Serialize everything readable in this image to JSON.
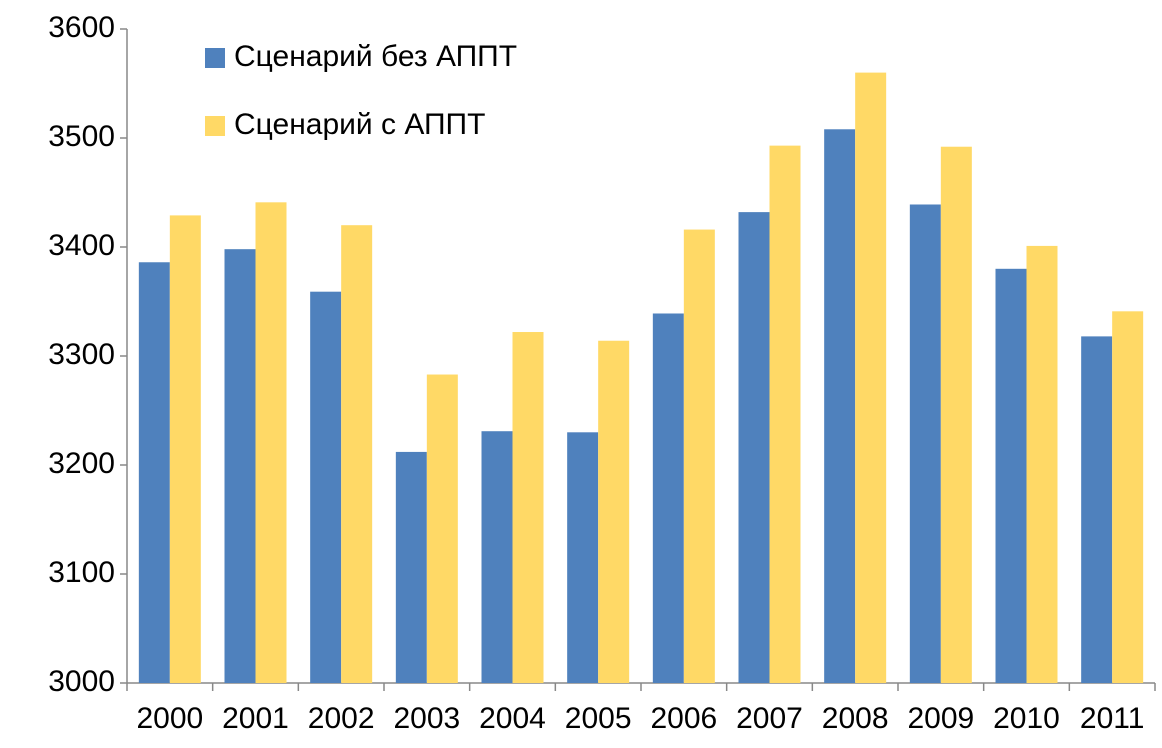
{
  "chart_data": {
    "type": "bar",
    "categories": [
      "2000",
      "2001",
      "2002",
      "2003",
      "2004",
      "2005",
      "2006",
      "2007",
      "2008",
      "2009",
      "2010",
      "2011"
    ],
    "series": [
      {
        "name": "Сценарий без АППТ",
        "color": "#4f81bd",
        "values": [
          3386,
          3398,
          3359,
          3212,
          3231,
          3230,
          3339,
          3432,
          3508,
          3439,
          3380,
          3318
        ]
      },
      {
        "name": "Сценарий с АППТ",
        "color": "#ffd966",
        "values": [
          3429,
          3441,
          3420,
          3283,
          3322,
          3314,
          3416,
          3493,
          3560,
          3492,
          3401,
          3341
        ]
      }
    ],
    "ylim": [
      3000,
      3600
    ],
    "yticks": [
      3000,
      3100,
      3200,
      3300,
      3400,
      3500,
      3600
    ],
    "grid": false,
    "legend": "top-left"
  }
}
